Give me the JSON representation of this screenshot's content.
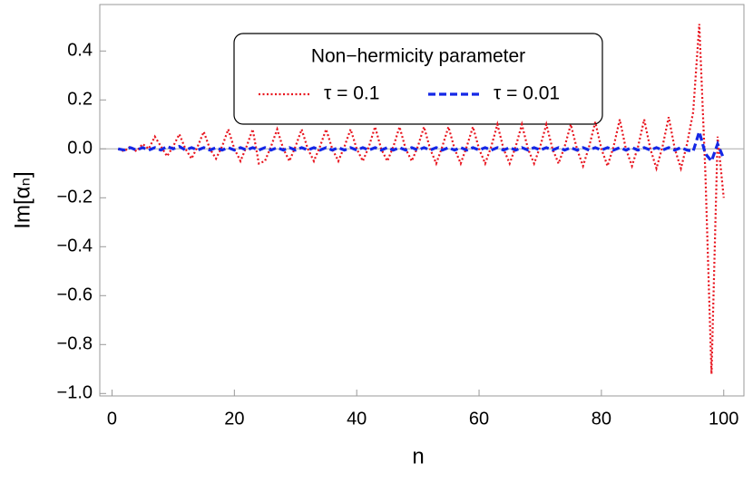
{
  "chart_data": {
    "type": "line",
    "x_label": "n",
    "y_label": "Im[αₙ]",
    "legend_title": "Non−hermicity parameter",
    "legend_position": "top",
    "x": [
      1,
      2,
      3,
      4,
      5,
      6,
      7,
      8,
      9,
      10,
      11,
      12,
      13,
      14,
      15,
      16,
      17,
      18,
      19,
      20,
      21,
      22,
      23,
      24,
      25,
      26,
      27,
      28,
      29,
      30,
      31,
      32,
      33,
      34,
      35,
      36,
      37,
      38,
      39,
      40,
      41,
      42,
      43,
      44,
      45,
      46,
      47,
      48,
      49,
      50,
      51,
      52,
      53,
      54,
      55,
      56,
      57,
      58,
      59,
      60,
      61,
      62,
      63,
      64,
      65,
      66,
      67,
      68,
      69,
      70,
      71,
      72,
      73,
      74,
      75,
      76,
      77,
      78,
      79,
      80,
      81,
      82,
      83,
      84,
      85,
      86,
      87,
      88,
      89,
      90,
      91,
      92,
      93,
      94,
      95,
      96,
      97,
      98,
      99,
      100
    ],
    "series": [
      {
        "name": "τ = 0.1",
        "color": "#e8141e",
        "dash": "2,2.5",
        "width": 2.2,
        "values": [
          0.0,
          -0.01,
          0.01,
          -0.01,
          0.02,
          0.0,
          0.05,
          0.01,
          -0.03,
          0.01,
          0.06,
          0.0,
          -0.04,
          0.01,
          0.07,
          0.0,
          -0.04,
          0.01,
          0.08,
          0.0,
          -0.05,
          0.01,
          0.08,
          -0.06,
          -0.05,
          0.01,
          0.08,
          0.0,
          -0.05,
          0.01,
          0.08,
          0.0,
          -0.05,
          0.01,
          0.08,
          0.0,
          -0.05,
          0.01,
          0.08,
          0.0,
          -0.05,
          0.01,
          0.09,
          0.0,
          -0.05,
          0.01,
          0.09,
          0.0,
          -0.05,
          0.01,
          0.09,
          0.0,
          -0.06,
          0.01,
          0.09,
          0.0,
          -0.06,
          0.01,
          0.09,
          0.0,
          -0.06,
          0.01,
          0.1,
          0.0,
          -0.06,
          0.01,
          0.1,
          0.0,
          -0.06,
          0.01,
          0.1,
          0.0,
          -0.06,
          0.01,
          0.1,
          0.0,
          -0.07,
          0.01,
          0.11,
          0.0,
          -0.07,
          0.01,
          0.12,
          0.0,
          -0.07,
          0.01,
          0.12,
          0.0,
          -0.08,
          0.01,
          0.13,
          0.0,
          -0.08,
          0.02,
          0.15,
          0.51,
          -0.1,
          -0.92,
          0.05,
          -0.2
        ]
      },
      {
        "name": "τ = 0.01",
        "color": "#1428e6",
        "dash": "8,4",
        "width": 3.2,
        "values": [
          0.0,
          -0.005,
          0.005,
          -0.005,
          0.005,
          -0.005,
          0.005,
          -0.005,
          0.01,
          0.0,
          0.01,
          -0.005,
          0.005,
          -0.005,
          0.005,
          -0.005,
          0.005,
          -0.005,
          0.005,
          -0.005,
          0.005,
          -0.005,
          0.005,
          -0.005,
          0.005,
          -0.005,
          0.005,
          -0.005,
          0.005,
          -0.005,
          0.005,
          -0.005,
          0.005,
          -0.005,
          0.005,
          -0.005,
          0.005,
          -0.005,
          0.005,
          -0.005,
          0.005,
          -0.005,
          0.005,
          -0.005,
          0.005,
          -0.005,
          0.005,
          -0.005,
          0.005,
          -0.005,
          0.005,
          -0.005,
          0.005,
          -0.005,
          0.005,
          -0.005,
          0.005,
          -0.005,
          0.005,
          -0.005,
          0.005,
          -0.005,
          0.005,
          -0.005,
          0.005,
          -0.005,
          0.005,
          -0.005,
          0.005,
          -0.005,
          0.005,
          -0.005,
          0.005,
          -0.005,
          0.005,
          -0.005,
          0.005,
          -0.005,
          0.005,
          -0.005,
          0.005,
          -0.005,
          0.005,
          -0.005,
          0.005,
          -0.005,
          0.005,
          -0.005,
          0.005,
          -0.005,
          0.005,
          -0.005,
          0.005,
          -0.005,
          -0.01,
          0.07,
          -0.02,
          -0.05,
          0.02,
          -0.04
        ]
      }
    ],
    "xlim": [
      -2,
      103.3
    ],
    "ylim": [
      -1.01,
      0.59
    ],
    "xticks": [
      0,
      20,
      40,
      60,
      80,
      100
    ],
    "yticks": [
      0.4,
      0.2,
      {
        "value": 0,
        "label": "0.0"
      },
      {
        "value": -0.2,
        "label": "−0.2"
      },
      {
        "value": -0.4,
        "label": "−0.4"
      },
      {
        "value": -0.6,
        "label": "−0.6"
      },
      {
        "value": -0.8,
        "label": "−0.8"
      },
      {
        "value": -1,
        "label": "−1.0"
      }
    ]
  }
}
